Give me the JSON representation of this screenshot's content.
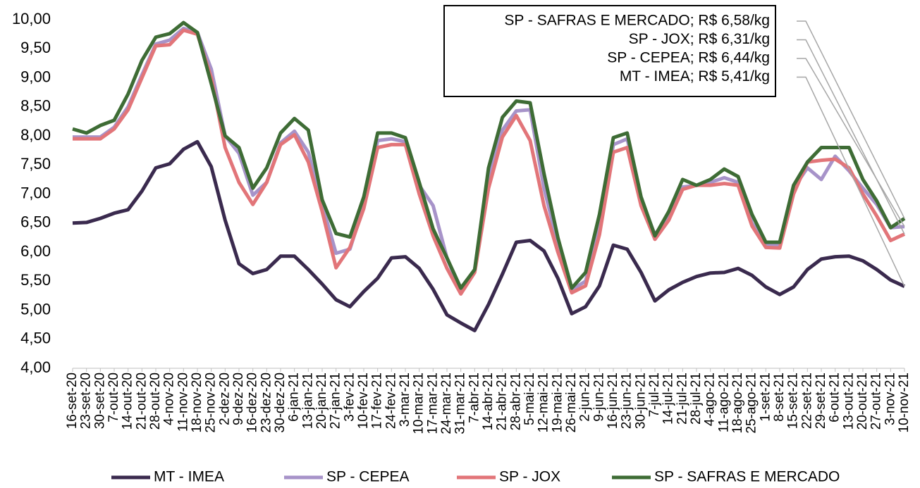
{
  "chart_data": {
    "type": "line",
    "categories": [
      "16-set-20",
      "23-set-20",
      "30-set-20",
      "7-out-20",
      "14-out-20",
      "21-out-20",
      "28-out-20",
      "4-nov-20",
      "11-nov-20",
      "18-nov-20",
      "25-nov-20",
      "2-dez-20",
      "9-dez-20",
      "16-dez-20",
      "23-dez-20",
      "30-dez-20",
      "6-jan-21",
      "13-jan-21",
      "20-jan-21",
      "27-jan-21",
      "3-fev-21",
      "10-fev-21",
      "17-fev-21",
      "24-fev-21",
      "3-mar-21",
      "10-mar-21",
      "17-mar-21",
      "24-mar-21",
      "31-mar-21",
      "7-abr-21",
      "14-abr-21",
      "21-abr-21",
      "28-abr-21",
      "5-mai-21",
      "12-mai-21",
      "19-mai-21",
      "26-mai-21",
      "2-jun-21",
      "9-jun-21",
      "16-jun-21",
      "23-jun-21",
      "30-jun-21",
      "7-jul-21",
      "14-jul-21",
      "21-jul-21",
      "28-jul-21",
      "4-ago-21",
      "11-ago-21",
      "18-ago-21",
      "25-ago-21",
      "1-set-21",
      "8-set-21",
      "15-set-21",
      "22-set-21",
      "29-set-21",
      "6-out-21",
      "13-out-21",
      "20-out-21",
      "27-out-21",
      "3-nov-21",
      "10-nov-21"
    ],
    "series": [
      {
        "name": "MT - IMEA",
        "color": "#3a2a4e",
        "values": [
          6.5,
          6.51,
          6.58,
          6.67,
          6.73,
          7.05,
          7.45,
          7.52,
          7.77,
          7.9,
          7.47,
          6.55,
          5.8,
          5.63,
          5.7,
          5.93,
          5.93,
          5.7,
          5.45,
          5.18,
          5.06,
          5.32,
          5.55,
          5.9,
          5.92,
          5.72,
          5.36,
          4.92,
          4.78,
          4.65,
          5.1,
          5.62,
          6.17,
          6.2,
          6.02,
          5.55,
          4.94,
          5.06,
          5.42,
          6.12,
          6.05,
          5.65,
          5.16,
          5.35,
          5.48,
          5.58,
          5.64,
          5.65,
          5.72,
          5.6,
          5.4,
          5.27,
          5.4,
          5.7,
          5.88,
          5.92,
          5.93,
          5.85,
          5.7,
          5.52,
          5.41
        ]
      },
      {
        "name": "SP - CEPEA",
        "color": "#a793c9",
        "values": [
          7.98,
          7.98,
          7.98,
          8.15,
          8.5,
          9.05,
          9.58,
          9.65,
          9.85,
          9.78,
          9.15,
          8.0,
          7.7,
          6.98,
          7.2,
          7.88,
          8.08,
          7.72,
          6.82,
          5.98,
          6.05,
          6.8,
          7.92,
          7.95,
          7.9,
          7.15,
          6.8,
          5.9,
          5.32,
          5.7,
          7.3,
          8.1,
          8.43,
          8.45,
          7.1,
          6.15,
          5.35,
          5.5,
          6.4,
          7.85,
          7.95,
          6.9,
          6.3,
          6.62,
          7.12,
          7.15,
          7.2,
          7.28,
          7.2,
          6.5,
          6.12,
          6.12,
          7.1,
          7.45,
          7.25,
          7.65,
          7.4,
          7.1,
          6.82,
          6.42,
          6.44
        ]
      },
      {
        "name": "SP - JOX",
        "color": "#e27579",
        "values": [
          7.95,
          7.95,
          7.95,
          8.12,
          8.45,
          9.0,
          9.55,
          9.57,
          9.82,
          9.75,
          9.0,
          7.8,
          7.2,
          6.82,
          7.2,
          7.85,
          8.02,
          7.55,
          6.7,
          5.73,
          6.08,
          6.75,
          7.8,
          7.85,
          7.85,
          7.0,
          6.28,
          5.72,
          5.28,
          5.65,
          7.1,
          7.98,
          8.35,
          7.92,
          6.8,
          6.0,
          5.3,
          5.42,
          6.3,
          7.72,
          7.8,
          6.8,
          6.22,
          6.55,
          7.08,
          7.15,
          7.15,
          7.18,
          7.15,
          6.45,
          6.08,
          6.07,
          7.0,
          7.55,
          7.58,
          7.6,
          7.45,
          7.0,
          6.62,
          6.2,
          6.31
        ]
      },
      {
        "name": "SP - SAFRAS E MERCADO",
        "color": "#3e6c35",
        "values": [
          8.12,
          8.05,
          8.18,
          8.27,
          8.72,
          9.3,
          9.7,
          9.76,
          9.95,
          9.78,
          8.9,
          8.0,
          7.8,
          7.1,
          7.45,
          8.05,
          8.3,
          8.1,
          6.9,
          6.32,
          6.26,
          6.95,
          8.05,
          8.05,
          7.97,
          7.2,
          6.4,
          5.9,
          5.38,
          5.7,
          7.45,
          8.32,
          8.6,
          8.57,
          7.35,
          6.25,
          5.38,
          5.65,
          6.65,
          7.97,
          8.05,
          6.95,
          6.28,
          6.7,
          7.25,
          7.15,
          7.25,
          7.43,
          7.3,
          6.65,
          6.17,
          6.17,
          7.15,
          7.55,
          7.8,
          7.8,
          7.8,
          7.25,
          6.88,
          6.42,
          6.58
        ]
      }
    ],
    "annotations": [
      "SP - SAFRAS E MERCADO; R$ 6,58/kg",
      "SP - JOX; R$ 6,31/kg",
      "SP - CEPEA; R$ 6,44/kg",
      "MT - IMEA; R$ 5,41/kg"
    ],
    "ylim": [
      4,
      10
    ],
    "yticks": [
      {
        "value": 4,
        "label": "4,00"
      },
      {
        "value": 4.5,
        "label": "4,50"
      },
      {
        "value": 5,
        "label": "5,00"
      },
      {
        "value": 5.5,
        "label": "5,50"
      },
      {
        "value": 6,
        "label": "6,00"
      },
      {
        "value": 6.5,
        "label": "6,50"
      },
      {
        "value": 7,
        "label": "7,00"
      },
      {
        "value": 7.5,
        "label": "7,50"
      },
      {
        "value": 8,
        "label": "8,00"
      },
      {
        "value": 8.5,
        "label": "8,50"
      },
      {
        "value": 9,
        "label": "9,00"
      },
      {
        "value": 9.5,
        "label": "9,50"
      },
      {
        "value": 10,
        "label": "10,00"
      }
    ],
    "grid": false,
    "legend": "bottom"
  }
}
